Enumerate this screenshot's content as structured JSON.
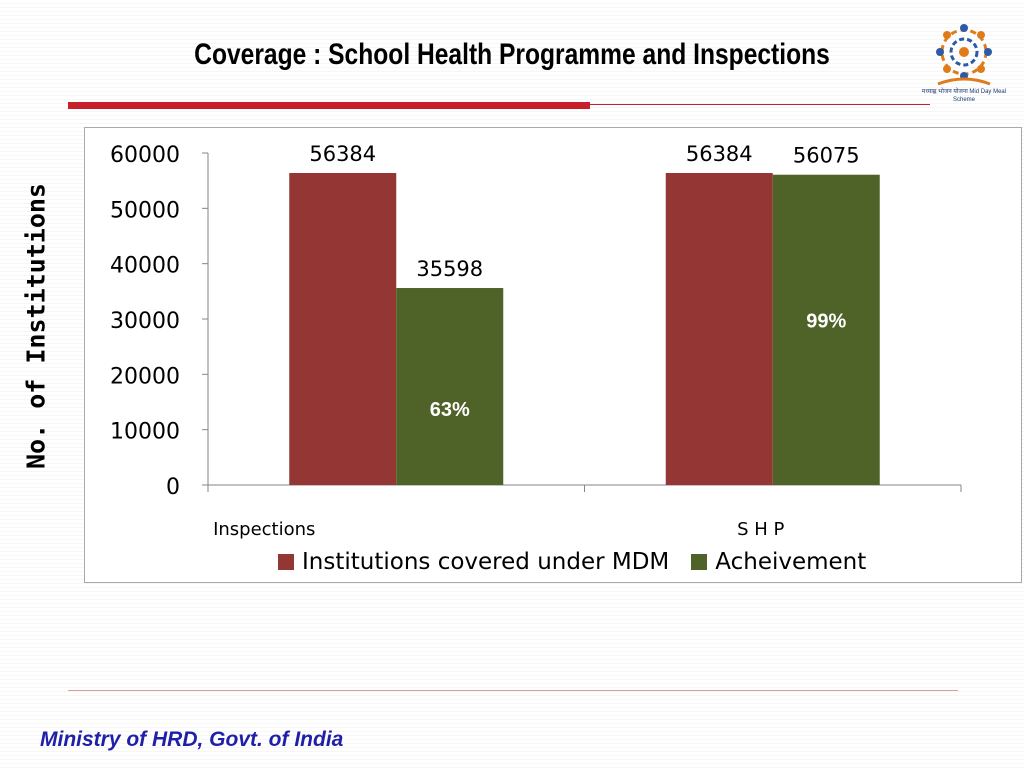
{
  "slide": {
    "title": "Coverage : School Health Programme and Inspections",
    "footer": "Ministry of HRD, Govt. of India",
    "logo_caption": "मध्याह्न भोजन योजना Mid Day Meal Scheme"
  },
  "colors": {
    "title_rule": "#c8202a",
    "footer_text": "#1f1fa8",
    "series_mdm": "#943634",
    "series_achievement": "#4f6228"
  },
  "chart_data": {
    "type": "bar",
    "categories": [
      "Inspections",
      "S H P"
    ],
    "series": [
      {
        "name": "Institutions covered under MDM",
        "values": [
          56384,
          56384
        ],
        "color": "#943634"
      },
      {
        "name": "Acheivement",
        "values": [
          35598,
          56075
        ],
        "color": "#4f6228"
      }
    ],
    "percent_labels": [
      "63%",
      "99%"
    ],
    "ylabel": "No. of Institutions",
    "xlabel": "",
    "ylim": [
      0,
      60000
    ],
    "yticks": [
      0,
      10000,
      20000,
      30000,
      40000,
      50000,
      60000
    ],
    "grid": false,
    "legend": "bottom"
  }
}
